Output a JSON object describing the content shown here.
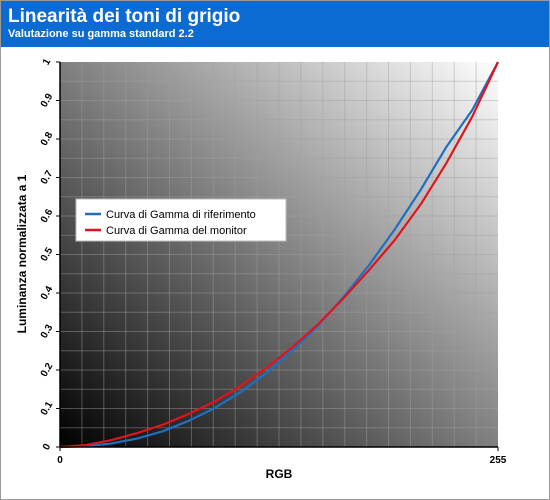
{
  "header": {
    "title": "Linearità dei toni di grigio",
    "subtitle": "Valutazione su gamma standard 2.2"
  },
  "colors": {
    "header_bg": "#0b6bd3",
    "reference_curve": "#1f6fc0",
    "monitor_curve": "#e0141c"
  },
  "chart_data": {
    "type": "line",
    "xlabel": "RGB",
    "ylabel": "Luminanza normalizzata a 1",
    "xlim": [
      0,
      255
    ],
    "ylim": [
      0,
      1
    ],
    "x_ticks": [
      "0",
      "255"
    ],
    "y_ticks": [
      "0",
      "0.1",
      "0.2",
      "0.3",
      "0.4",
      "0.5",
      "0.6",
      "0.7",
      "0.8",
      "0.9",
      "1"
    ],
    "grid": true,
    "background": "diagonal black-to-white gradient",
    "legend_position": "left-middle",
    "series": [
      {
        "name": "Curva di Gamma di riferimento",
        "color": "#1f6fc0",
        "x": [
          0,
          15,
          30,
          45,
          60,
          75,
          90,
          105,
          120,
          135,
          150,
          165,
          180,
          195,
          210,
          225,
          240,
          255
        ],
        "y": [
          0.0,
          0.002,
          0.009,
          0.022,
          0.041,
          0.068,
          0.101,
          0.142,
          0.191,
          0.249,
          0.314,
          0.389,
          0.473,
          0.566,
          0.668,
          0.78,
          0.875,
          1.0
        ]
      },
      {
        "name": "Curva di Gamma del monitor",
        "color": "#e0141c",
        "x": [
          0,
          15,
          30,
          45,
          60,
          75,
          90,
          105,
          120,
          135,
          150,
          165,
          180,
          195,
          210,
          225,
          240,
          255
        ],
        "y": [
          0.0,
          0.005,
          0.018,
          0.036,
          0.058,
          0.086,
          0.118,
          0.158,
          0.205,
          0.258,
          0.318,
          0.386,
          0.46,
          0.538,
          0.63,
          0.738,
          0.858,
          1.0
        ]
      }
    ]
  }
}
